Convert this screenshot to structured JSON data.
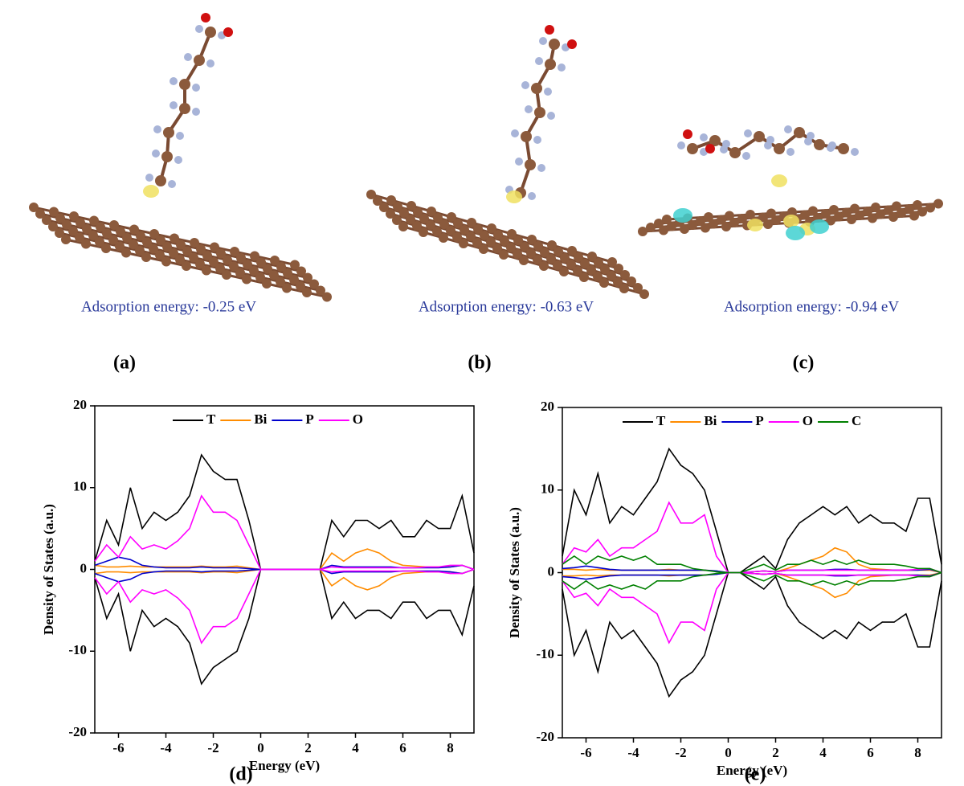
{
  "panels": [
    {
      "label": "(a)",
      "caption": "Adsorption energy: -0.25 eV"
    },
    {
      "label": "(b)",
      "caption": "Adsorption energy: -0.63 eV"
    },
    {
      "label": "(c)",
      "caption": "Adsorption energy: -0.94 eV"
    }
  ],
  "chart_data": [
    {
      "type": "line",
      "label": "(d)",
      "x_label": "Energy (eV)",
      "y_label": "Density of States (a.u.)",
      "x": [
        -7,
        -6.5,
        -6,
        -5.5,
        -5,
        -4.5,
        -4,
        -3.5,
        -3,
        -2.5,
        -2,
        -1.5,
        -1,
        -0.5,
        0,
        0.5,
        1,
        1.5,
        2,
        2.5,
        3,
        3.5,
        4,
        4.5,
        5,
        5.5,
        6,
        6.5,
        7,
        7.5,
        8,
        8.5,
        9
      ],
      "xlim": [
        -7,
        9
      ],
      "xticks": [
        -6,
        -4,
        -2,
        0,
        2,
        4,
        6,
        8
      ],
      "ylim": [
        -20,
        20
      ],
      "yticks": [
        -20,
        -10,
        0,
        10,
        20
      ],
      "series": [
        {
          "name": "T",
          "color": "#000000",
          "values": [
            1,
            6,
            3,
            10,
            5,
            7,
            6,
            7,
            9,
            14,
            12,
            11,
            11,
            6,
            0,
            0,
            0,
            0,
            0,
            0,
            6,
            4,
            6,
            6,
            5,
            6,
            4,
            4,
            6,
            5,
            5,
            9,
            2
          ],
          "values_down": [
            -1,
            -6,
            -3,
            -10,
            -5,
            -7,
            -6,
            -7,
            -9,
            -14,
            -12,
            -11,
            -10,
            -6,
            0,
            0,
            0,
            0,
            0,
            0,
            -6,
            -4,
            -6,
            -5,
            -5,
            -6,
            -4,
            -4,
            -6,
            -5,
            -5,
            -8,
            -2
          ]
        },
        {
          "name": "Bi",
          "color": "#ff8c00",
          "values": [
            0.5,
            0.3,
            0.3,
            0.4,
            0.3,
            0.3,
            0.3,
            0.3,
            0.3,
            0.4,
            0.3,
            0.3,
            0.4,
            0.2,
            0,
            0,
            0,
            0,
            0,
            0,
            2,
            1,
            2,
            2.5,
            2,
            1,
            0.5,
            0.4,
            0.3,
            0.3,
            0.3,
            0.5,
            0
          ],
          "values_down": [
            -0.5,
            -0.3,
            -0.3,
            -0.4,
            -0.3,
            -0.3,
            -0.3,
            -0.3,
            -0.3,
            -0.4,
            -0.3,
            -0.3,
            -0.4,
            -0.2,
            0,
            0,
            0,
            0,
            0,
            0,
            -2,
            -1,
            -2,
            -2.5,
            -2,
            -1,
            -0.5,
            -0.4,
            -0.3,
            -0.3,
            -0.3,
            -0.5,
            0
          ]
        },
        {
          "name": "P",
          "color": "#0000cd",
          "values": [
            0.5,
            1,
            1.5,
            1.2,
            0.5,
            0.3,
            0.2,
            0.2,
            0.2,
            0.3,
            0.2,
            0.2,
            0.2,
            0.1,
            0,
            0,
            0,
            0,
            0,
            0,
            0.5,
            0.3,
            0.3,
            0.3,
            0.3,
            0.3,
            0.2,
            0.2,
            0.2,
            0.2,
            0.3,
            0.5,
            0
          ],
          "values_down": [
            -0.5,
            -1,
            -1.5,
            -1.2,
            -0.5,
            -0.3,
            -0.2,
            -0.2,
            -0.2,
            -0.3,
            -0.2,
            -0.2,
            -0.2,
            -0.1,
            0,
            0,
            0,
            0,
            0,
            0,
            -0.5,
            -0.3,
            -0.3,
            -0.3,
            -0.3,
            -0.3,
            -0.2,
            -0.2,
            -0.2,
            -0.2,
            -0.3,
            -0.5,
            0
          ]
        },
        {
          "name": "O",
          "color": "#ff00ff",
          "values": [
            1,
            3,
            1.5,
            4,
            2.5,
            3,
            2.5,
            3.5,
            5,
            9,
            7,
            7,
            6,
            3,
            0,
            0,
            0,
            0,
            0,
            0,
            0.3,
            0.2,
            0.2,
            0.2,
            0.2,
            0.2,
            0.2,
            0.2,
            0.3,
            0.3,
            0.5,
            0.5,
            0
          ],
          "values_down": [
            -1,
            -3,
            -1.5,
            -4,
            -2.5,
            -3,
            -2.5,
            -3.5,
            -5,
            -9,
            -7,
            -7,
            -6,
            -3,
            0,
            0,
            0,
            0,
            0,
            0,
            -0.3,
            -0.2,
            -0.2,
            -0.2,
            -0.2,
            -0.2,
            -0.2,
            -0.2,
            -0.3,
            -0.3,
            -0.5,
            -0.5,
            0
          ]
        }
      ]
    },
    {
      "type": "line",
      "label": "(e)",
      "x_label": "Energy (eV)",
      "y_label": "Density of States (a.u.)",
      "x": [
        -7,
        -6.5,
        -6,
        -5.5,
        -5,
        -4.5,
        -4,
        -3.5,
        -3,
        -2.5,
        -2,
        -1.5,
        -1,
        -0.5,
        0,
        0.5,
        1,
        1.5,
        2,
        2.5,
        3,
        3.5,
        4,
        4.5,
        5,
        5.5,
        6,
        6.5,
        7,
        7.5,
        8,
        8.5,
        9
      ],
      "xlim": [
        -7,
        9
      ],
      "xticks": [
        -6,
        -4,
        -2,
        0,
        2,
        4,
        6,
        8
      ],
      "ylim": [
        -20,
        20
      ],
      "yticks": [
        -20,
        -10,
        0,
        10,
        20
      ],
      "series": [
        {
          "name": "T",
          "color": "#000000",
          "values": [
            2,
            10,
            7,
            12,
            6,
            8,
            7,
            9,
            11,
            15,
            13,
            12,
            10,
            5,
            0,
            0,
            1,
            2,
            0.5,
            4,
            6,
            7,
            8,
            7,
            8,
            6,
            7,
            6,
            6,
            5,
            9,
            9,
            1
          ],
          "values_down": [
            -2,
            -10,
            -7,
            -12,
            -6,
            -8,
            -7,
            -9,
            -11,
            -15,
            -13,
            -12,
            -10,
            -5,
            0,
            0,
            -1,
            -2,
            -0.5,
            -4,
            -6,
            -7,
            -8,
            -7,
            -8,
            -6,
            -7,
            -6,
            -6,
            -5,
            -9,
            -9,
            -1
          ]
        },
        {
          "name": "Bi",
          "color": "#ff8c00",
          "values": [
            0.4,
            0.4,
            0.3,
            0.4,
            0.3,
            0.3,
            0.3,
            0.3,
            0.3,
            0.4,
            0.3,
            0.3,
            0.3,
            0.2,
            0,
            0,
            0.1,
            0.2,
            0.1,
            0.5,
            1,
            1.5,
            2,
            3,
            2.5,
            1,
            0.5,
            0.4,
            0.3,
            0.3,
            0.3,
            0.3,
            0
          ],
          "values_down": [
            -0.4,
            -0.4,
            -0.3,
            -0.4,
            -0.3,
            -0.3,
            -0.3,
            -0.3,
            -0.3,
            -0.4,
            -0.3,
            -0.3,
            -0.3,
            -0.2,
            0,
            0,
            -0.1,
            -0.2,
            -0.1,
            -0.5,
            -1,
            -1.5,
            -2,
            -3,
            -2.5,
            -1,
            -0.5,
            -0.4,
            -0.3,
            -0.3,
            -0.3,
            -0.3,
            0
          ]
        },
        {
          "name": "P",
          "color": "#0000cd",
          "values": [
            0.5,
            0.6,
            0.8,
            0.6,
            0.4,
            0.3,
            0.3,
            0.3,
            0.3,
            0.3,
            0.3,
            0.3,
            0.3,
            0.2,
            0,
            0,
            0.1,
            0.2,
            0.1,
            0.3,
            0.3,
            0.3,
            0.3,
            0.4,
            0.4,
            0.3,
            0.3,
            0.3,
            0.3,
            0.3,
            0.3,
            0.4,
            0
          ],
          "values_down": [
            -0.5,
            -0.6,
            -0.8,
            -0.6,
            -0.4,
            -0.3,
            -0.3,
            -0.3,
            -0.3,
            -0.3,
            -0.3,
            -0.3,
            -0.3,
            -0.2,
            0,
            0,
            -0.1,
            -0.2,
            -0.1,
            -0.3,
            -0.3,
            -0.3,
            -0.3,
            -0.4,
            -0.4,
            -0.3,
            -0.3,
            -0.3,
            -0.3,
            -0.3,
            -0.3,
            -0.4,
            0
          ]
        },
        {
          "name": "O",
          "color": "#ff00ff",
          "values": [
            1,
            3,
            2.5,
            4,
            2,
            3,
            3,
            4,
            5,
            8.5,
            6,
            6,
            7,
            2,
            0,
            0,
            0.1,
            0.2,
            0.1,
            0.3,
            0.3,
            0.3,
            0.3,
            0.3,
            0.3,
            0.3,
            0.3,
            0.3,
            0.3,
            0.3,
            0.4,
            0.5,
            0
          ],
          "values_down": [
            -1,
            -3,
            -2.5,
            -4,
            -2,
            -3,
            -3,
            -4,
            -5,
            -8.5,
            -6,
            -6,
            -7,
            -2,
            0,
            0,
            -0.1,
            -0.2,
            -0.1,
            -0.3,
            -0.3,
            -0.3,
            -0.3,
            -0.3,
            -0.3,
            -0.3,
            -0.3,
            -0.3,
            -0.3,
            -0.3,
            -0.4,
            -0.5,
            0
          ]
        },
        {
          "name": "C",
          "color": "#008000",
          "values": [
            1,
            2,
            1,
            2,
            1.5,
            2,
            1.5,
            2,
            1,
            1,
            1,
            0.5,
            0.3,
            0.1,
            0,
            0,
            0.5,
            1,
            0.3,
            1,
            1,
            1.5,
            1,
            1.5,
            1,
            1.5,
            1,
            1,
            1,
            0.8,
            0.5,
            0.5,
            0
          ],
          "values_down": [
            -1,
            -2,
            -1,
            -2,
            -1.5,
            -2,
            -1.5,
            -2,
            -1,
            -1,
            -1,
            -0.5,
            -0.3,
            -0.1,
            0,
            0,
            -0.5,
            -1,
            -0.3,
            -1,
            -1,
            -1.5,
            -1,
            -1.5,
            -1,
            -1.5,
            -1,
            -1,
            -1,
            -0.8,
            -0.5,
            -0.5,
            0
          ]
        }
      ]
    }
  ]
}
